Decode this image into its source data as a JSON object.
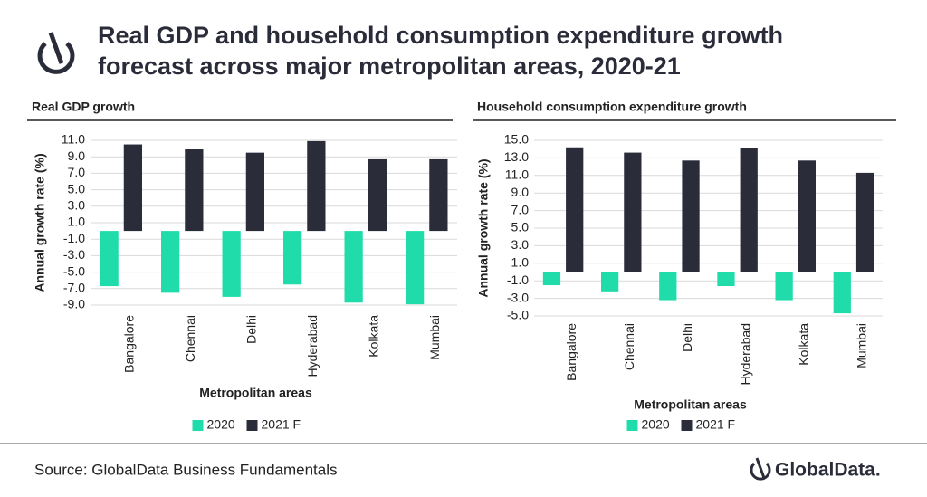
{
  "header": {
    "title": "Real GDP and household consumption expenditure growth forecast across major metropolitan areas, 2020-21"
  },
  "chart_data": [
    {
      "type": "bar",
      "title": "Real GDP growth",
      "y_label": "Annual growth rate (%)",
      "x_label": "Metropolitan areas",
      "categories": [
        "Bangalore",
        "Chennai",
        "Delhi",
        "Hyderabad",
        "Kolkata",
        "Mumbai"
      ],
      "series": [
        {
          "name": "2020",
          "color": "#1fdcaa",
          "values": [
            -6.7,
            -7.5,
            -8.0,
            -6.5,
            -8.7,
            -8.9
          ]
        },
        {
          "name": "2021 F",
          "color": "#2b2c3a",
          "values": [
            10.5,
            9.9,
            9.5,
            10.9,
            8.7,
            8.7
          ]
        }
      ],
      "ylim": [
        -9,
        11
      ],
      "yticks": [
        {
          "value": 11,
          "label": "11.0"
        },
        {
          "value": 9,
          "label": "9.0"
        },
        {
          "value": 7,
          "label": "7.0"
        },
        {
          "value": 5,
          "label": "5.0"
        },
        {
          "value": 3,
          "label": "3.0"
        },
        {
          "value": 1,
          "label": "1.0"
        },
        {
          "value": -1,
          "label": "-1.0"
        },
        {
          "value": -3,
          "label": "-3.0"
        },
        {
          "value": -5,
          "label": "-5.0"
        },
        {
          "value": -7,
          "label": "-7.0"
        },
        {
          "value": -9,
          "label": "-9.0"
        }
      ],
      "grid": true
    },
    {
      "type": "bar",
      "title": "Household consumption expenditure growth",
      "y_label": "Annual growth rate (%)",
      "x_label": "Metropolitan areas",
      "categories": [
        "Bangalore",
        "Chennai",
        "Delhi",
        "Hyderabad",
        "Kolkata",
        "Mumbai"
      ],
      "series": [
        {
          "name": "2020",
          "color": "#1fdcaa",
          "values": [
            -1.5,
            -2.2,
            -3.2,
            -1.6,
            -3.2,
            -4.7
          ]
        },
        {
          "name": "2021 F",
          "color": "#2b2c3a",
          "values": [
            14.2,
            13.6,
            12.7,
            14.1,
            12.7,
            11.3
          ]
        }
      ],
      "ylim": [
        -5,
        15
      ],
      "yticks": [
        {
          "value": 15,
          "label": "15.0"
        },
        {
          "value": 13,
          "label": "13.0"
        },
        {
          "value": 11,
          "label": "11.0"
        },
        {
          "value": 9,
          "label": "9.0"
        },
        {
          "value": 7,
          "label": "7.0"
        },
        {
          "value": 5,
          "label": "5.0"
        },
        {
          "value": 3,
          "label": "3.0"
        },
        {
          "value": 1,
          "label": "1.0"
        },
        {
          "value": -1,
          "label": "-1.0"
        },
        {
          "value": -3,
          "label": "-3.0"
        },
        {
          "value": -5,
          "label": "-5.0"
        }
      ],
      "grid": true
    }
  ],
  "footer": {
    "source": "Source: GlobalData Business Fundamentals",
    "brand": "GlobalData."
  }
}
